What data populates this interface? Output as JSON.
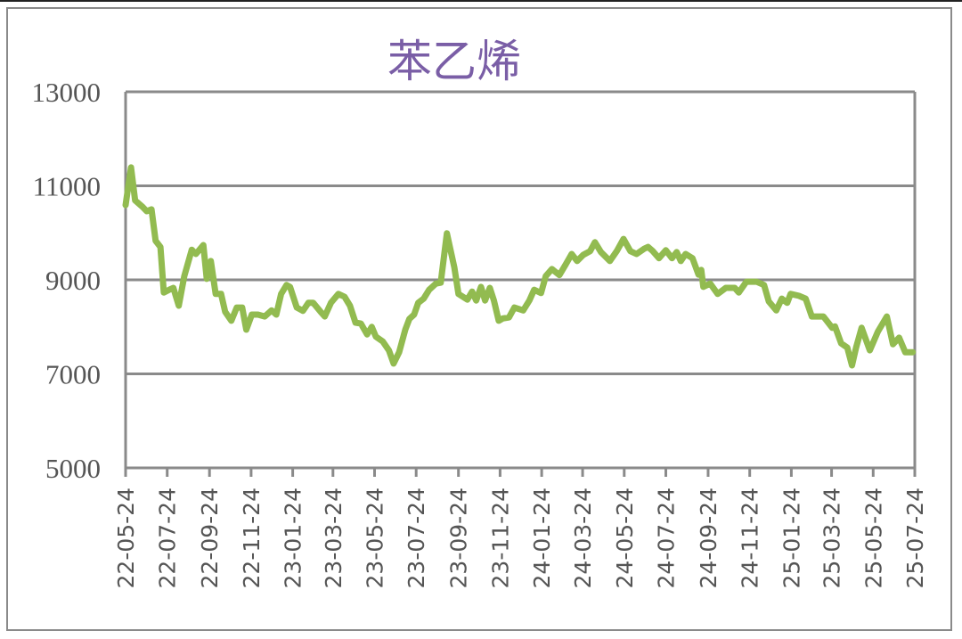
{
  "chart_data": {
    "type": "line",
    "title": "苯乙烯",
    "xlabel": "",
    "ylabel": "",
    "ylim": [
      5000,
      13000
    ],
    "yticks": [
      "13000",
      "11000",
      "9000",
      "7000",
      "5000"
    ],
    "ytick_values": [
      13000,
      11000,
      9000,
      7000,
      5000
    ],
    "xlim": [
      "2022-05-24",
      "2025-07-24"
    ],
    "xticks": [
      "22-05-24",
      "22-07-24",
      "22-09-24",
      "22-11-24",
      "23-01-24",
      "23-03-24",
      "23-05-24",
      "23-07-24",
      "23-09-24",
      "23-11-24",
      "24-01-24",
      "24-03-24",
      "24-05-24",
      "24-07-24",
      "24-09-24",
      "24-11-24",
      "25-01-24",
      "25-03-24",
      "25-05-24",
      "25-07-24"
    ],
    "xtick_dates": [
      "2022-05-24",
      "2022-07-24",
      "2022-09-24",
      "2022-11-24",
      "2023-01-24",
      "2023-03-24",
      "2023-05-24",
      "2023-07-24",
      "2023-09-24",
      "2023-11-24",
      "2024-01-24",
      "2024-03-24",
      "2024-05-24",
      "2024-07-24",
      "2024-09-24",
      "2024-11-24",
      "2025-01-24",
      "2025-03-24",
      "2025-05-24",
      "2025-07-24"
    ],
    "grid": "horizontal",
    "legend": "none",
    "colors": {
      "line": "#92bb50",
      "title": "#7a5ea6",
      "grid": "#8a8a8a"
    },
    "series": [
      {
        "x": [
          "2022-05-24",
          "2022-06-01",
          "2022-06-07",
          "2022-06-18",
          "2022-06-24",
          "2022-07-01",
          "2022-07-07",
          "2022-07-14",
          "2022-07-19",
          "2022-07-27",
          "2022-08-02",
          "2022-08-10",
          "2022-08-18",
          "2022-08-29",
          "2022-09-04",
          "2022-09-15",
          "2022-09-20",
          "2022-09-26",
          "2022-10-03",
          "2022-10-11",
          "2022-10-17",
          "2022-10-26",
          "2022-11-03",
          "2022-11-11",
          "2022-11-17",
          "2022-11-25",
          "2022-12-04",
          "2022-12-14",
          "2022-12-24",
          "2022-12-31",
          "2023-01-07",
          "2023-01-15",
          "2023-01-20",
          "2023-01-30",
          "2023-02-08",
          "2023-02-16",
          "2023-02-23",
          "2023-03-06",
          "2023-03-12",
          "2023-03-21",
          "2023-04-01",
          "2023-04-10",
          "2023-04-18",
          "2023-04-26",
          "2023-05-04",
          "2023-05-13",
          "2023-05-20",
          "2023-05-26",
          "2023-06-05",
          "2023-06-14",
          "2023-06-21",
          "2023-06-29",
          "2023-07-08",
          "2023-07-14",
          "2023-07-21",
          "2023-07-27",
          "2023-08-04",
          "2023-08-12",
          "2023-08-22",
          "2023-08-29",
          "2023-09-07",
          "2023-09-18",
          "2023-09-24",
          "2023-10-07",
          "2023-10-14",
          "2023-10-20",
          "2023-10-27",
          "2023-11-02",
          "2023-11-09",
          "2023-11-15",
          "2023-11-22",
          "2023-11-28",
          "2023-12-07",
          "2023-12-15",
          "2023-12-28",
          "2024-01-06",
          "2024-01-13",
          "2024-01-23",
          "2024-01-30",
          "2024-02-08",
          "2024-02-19",
          "2024-02-28",
          "2024-03-08",
          "2024-03-16",
          "2024-03-25",
          "2024-04-04",
          "2024-04-11",
          "2024-04-20",
          "2024-05-03",
          "2024-05-13",
          "2024-05-23",
          "2024-06-02",
          "2024-06-11",
          "2024-06-22",
          "2024-06-28",
          "2024-07-05",
          "2024-07-14",
          "2024-07-24",
          "2024-08-02",
          "2024-08-09",
          "2024-08-15",
          "2024-08-22",
          "2024-09-01",
          "2024-09-10",
          "2024-09-14",
          "2024-09-17",
          "2024-09-27",
          "2024-10-08",
          "2024-10-20",
          "2024-11-02",
          "2024-11-08",
          "2024-11-19",
          "2024-12-04",
          "2024-12-15",
          "2024-12-22",
          "2025-01-02",
          "2025-01-10",
          "2025-01-18",
          "2025-01-23",
          "2025-02-04",
          "2025-02-14",
          "2025-02-23",
          "2025-03-12",
          "2025-03-25",
          "2025-03-29",
          "2025-04-07",
          "2025-04-16",
          "2025-04-23",
          "2025-04-29",
          "2025-05-07",
          "2025-05-19",
          "2025-05-31",
          "2025-06-13",
          "2025-06-22",
          "2025-07-01",
          "2025-07-10",
          "2025-07-21"
        ],
        "values": [
          10590,
          11390,
          10690,
          10550,
          10460,
          10500,
          9830,
          9700,
          8730,
          8790,
          8830,
          8450,
          9080,
          9640,
          9550,
          9740,
          9020,
          9400,
          8700,
          8700,
          8320,
          8130,
          8410,
          8410,
          7940,
          8260,
          8260,
          8220,
          8350,
          8260,
          8700,
          8890,
          8850,
          8410,
          8340,
          8510,
          8510,
          8320,
          8220,
          8510,
          8700,
          8640,
          8450,
          8090,
          8070,
          7840,
          8000,
          7790,
          7690,
          7500,
          7220,
          7460,
          7940,
          8170,
          8260,
          8510,
          8600,
          8790,
          8920,
          8940,
          9990,
          9260,
          8700,
          8580,
          8750,
          8560,
          8850,
          8560,
          8830,
          8560,
          8130,
          8180,
          8200,
          8410,
          8350,
          8560,
          8790,
          8720,
          9080,
          9230,
          9100,
          9320,
          9550,
          9400,
          9530,
          9610,
          9800,
          9590,
          9400,
          9610,
          9870,
          9610,
          9550,
          9660,
          9700,
          9610,
          9460,
          9630,
          9460,
          9590,
          9400,
          9550,
          9460,
          9110,
          9210,
          8850,
          8920,
          8700,
          8830,
          8830,
          8730,
          8960,
          8960,
          8890,
          8540,
          8350,
          8600,
          8510,
          8700,
          8660,
          8600,
          8220,
          8220,
          7980,
          8010,
          7650,
          7560,
          7180,
          7560,
          7980,
          7500,
          7900,
          8220,
          7630,
          7770,
          7460,
          7460
        ]
      }
    ]
  }
}
